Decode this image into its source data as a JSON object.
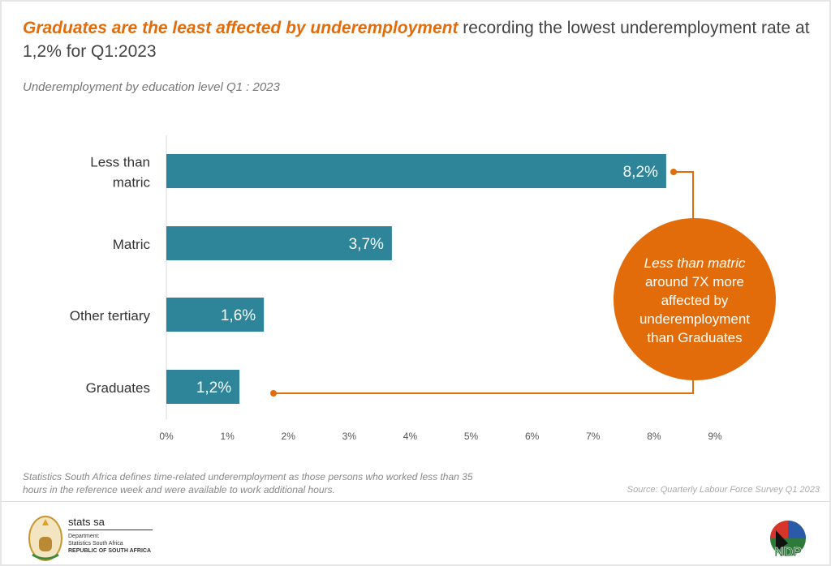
{
  "header": {
    "title_highlight": "Graduates are the least affected by underemployment",
    "title_rest": " recording the lowest underemployment rate at 1,2% for Q1:2023",
    "subtitle": "Underemployment by  education level Q1 : 2023"
  },
  "chart_data": {
    "type": "bar",
    "orientation": "horizontal",
    "categories": [
      [
        "Less than",
        "matric"
      ],
      [
        "Matric"
      ],
      [
        "Other tertiary"
      ],
      [
        "Graduates"
      ]
    ],
    "values": [
      8.2,
      3.7,
      1.6,
      1.2
    ],
    "data_labels": [
      "8,2%",
      "3,7%",
      "1,6%",
      "1,2%"
    ],
    "xlim": [
      0,
      9
    ],
    "x_ticks": [
      "0%",
      "1%",
      "2%",
      "3%",
      "4%",
      "5%",
      "6%",
      "7%",
      "8%",
      "9%"
    ],
    "bar_color": "#2e8599",
    "grid": false,
    "annotation": {
      "lines": [
        "Less than matric",
        "around 7X more",
        "affected by",
        "underemployment",
        "than Graduates"
      ],
      "color": "#e36c0a"
    }
  },
  "footer": {
    "note": "Statistics South Africa defines time-related underemployment as those persons who worked less than 35 hours in the reference week and were available to work additional hours.",
    "source": "Source: Quarterly Labour Force Survey Q1 2023",
    "logo_name": "stats sa",
    "logo_dept": [
      "Department:",
      "Statistics South Africa",
      "REPUBLIC OF SOUTH AFRICA"
    ],
    "ndp_logo": "2030 NDP"
  }
}
